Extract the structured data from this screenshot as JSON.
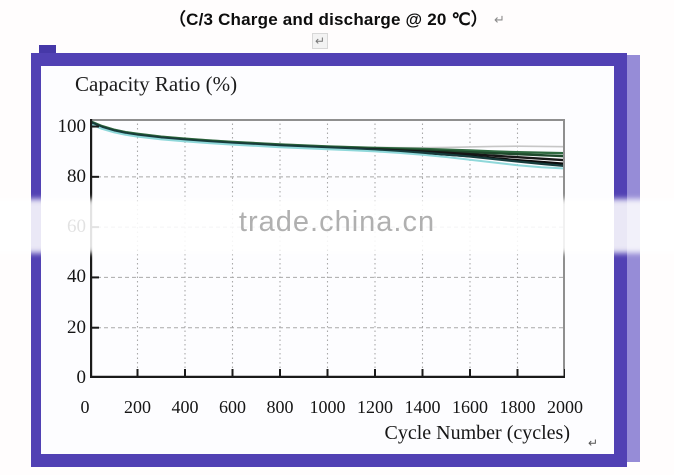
{
  "header": {
    "title": "（C/3 Charge and discharge @ 20 ℃）",
    "return_mark": "↵"
  },
  "watermark": {
    "text": "trade.china.cn",
    "color": "#b0b0b0"
  },
  "frame": {
    "border_color": "#5141b4",
    "shadow_color": "#968cd7"
  },
  "chart_data": {
    "type": "line",
    "title": "Capacity Ratio (%)",
    "xlabel": "Cycle Number (cycles)",
    "ylabel": "Capacity Ratio (%)",
    "xlim": [
      0,
      2000
    ],
    "ylim": [
      0,
      103
    ],
    "x_ticks": [
      0,
      200,
      400,
      600,
      800,
      1000,
      1200,
      1400,
      1600,
      1800,
      2000
    ],
    "y_ticks": [
      0,
      20,
      40,
      60,
      80,
      100
    ],
    "x_grid": [
      200,
      400,
      600,
      800,
      1000,
      1200,
      1400,
      1600,
      1800
    ],
    "y_grid": [
      20,
      40,
      60,
      80
    ],
    "grid": true,
    "legend": "none",
    "axis_colors": {
      "left_bottom": "#1a1a1a",
      "top_right": "#8f8f8f",
      "grid": "#a9a9a9"
    },
    "x": [
      0,
      25,
      50,
      100,
      150,
      200,
      300,
      400,
      500,
      600,
      700,
      800,
      900,
      1000,
      1100,
      1200,
      1300,
      1400,
      1500,
      1600,
      1700,
      1800,
      1900,
      2000
    ],
    "series": [
      {
        "name": "series-1-gray",
        "color": "#c6c6c6",
        "width": 1.6,
        "y": [
          102.3,
          101.3,
          100.3,
          98.9,
          97.9,
          97.2,
          96.1,
          95.3,
          94.6,
          94.0,
          93.5,
          93.0,
          92.6,
          92.2,
          91.9,
          91.7,
          91.6,
          91.6,
          91.7,
          91.9,
          92.1,
          92.2,
          92.1,
          92.0
        ]
      },
      {
        "name": "series-2-green",
        "color": "#2f6a40",
        "width": 2.3,
        "y": [
          102.2,
          101.2,
          100.2,
          98.8,
          97.8,
          97.1,
          96.0,
          95.2,
          94.5,
          93.9,
          93.4,
          92.9,
          92.5,
          92.1,
          91.8,
          91.5,
          91.3,
          91.1,
          90.8,
          90.5,
          90.1,
          89.8,
          89.6,
          89.4
        ]
      },
      {
        "name": "series-3-green",
        "color": "#1e4a2c",
        "width": 2.3,
        "y": [
          101.9,
          100.9,
          99.9,
          98.5,
          97.5,
          96.8,
          95.7,
          94.9,
          94.2,
          93.6,
          93.1,
          92.6,
          92.2,
          91.8,
          91.5,
          91.2,
          90.9,
          90.6,
          90.2,
          89.8,
          89.4,
          89.0,
          88.6,
          88.2
        ]
      },
      {
        "name": "series-4-black",
        "color": "#161616",
        "width": 2.4,
        "y": [
          101.6,
          100.6,
          99.6,
          98.2,
          97.2,
          96.5,
          95.4,
          94.6,
          93.9,
          93.3,
          92.8,
          92.3,
          91.9,
          91.5,
          91.2,
          90.9,
          90.5,
          90.1,
          89.6,
          89.0,
          88.4,
          87.8,
          87.2,
          86.6
        ]
      },
      {
        "name": "series-5-black",
        "color": "#0c0c0c",
        "width": 2.4,
        "y": [
          101.3,
          100.4,
          99.4,
          98.0,
          97.0,
          96.3,
          95.2,
          94.4,
          93.7,
          93.1,
          92.6,
          92.1,
          91.7,
          91.3,
          90.9,
          90.5,
          90.0,
          89.5,
          88.9,
          88.2,
          87.4,
          86.6,
          85.9,
          85.2
        ]
      },
      {
        "name": "series-6-teal",
        "color": "#173c3c",
        "width": 2.3,
        "y": [
          101.8,
          100.8,
          99.7,
          98.3,
          97.3,
          96.6,
          95.5,
          94.7,
          94.0,
          93.4,
          92.9,
          92.4,
          92.0,
          91.6,
          91.2,
          90.7,
          90.2,
          89.6,
          88.9,
          88.1,
          87.1,
          86.1,
          85.2,
          84.3
        ]
      },
      {
        "name": "series-7-cyan",
        "color": "#8fd8da",
        "width": 2.0,
        "y": [
          101.0,
          100.1,
          99.1,
          97.7,
          96.7,
          96.0,
          94.9,
          94.1,
          93.4,
          92.8,
          92.3,
          91.8,
          91.4,
          91.0,
          90.6,
          90.1,
          89.5,
          88.8,
          87.9,
          86.8,
          85.7,
          84.6,
          83.8,
          83.3
        ]
      }
    ]
  }
}
